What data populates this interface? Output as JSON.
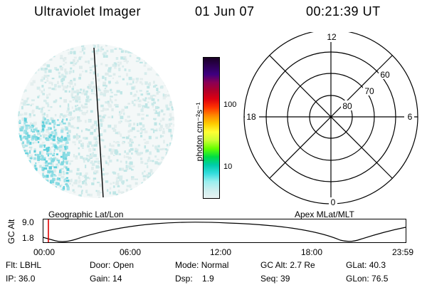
{
  "header": {
    "instrument": "Ultraviolet Imager",
    "date": "01 Jun 07",
    "time": "00:21:39 UT"
  },
  "colorbar": {
    "unit_label": "photon cm⁻²s⁻¹",
    "tick_labels": [
      "100",
      "10"
    ],
    "colors": [
      "#1a0026",
      "#2d0055",
      "#3d0080",
      "#8a0055",
      "#b0002a",
      "#dd0011",
      "#ff3300",
      "#ff8800",
      "#ffcc00",
      "#ffff33",
      "#ccff33",
      "#66ff00",
      "#00dd44",
      "#00ccaa",
      "#33dddd",
      "#99eeee",
      "#cceeee",
      "#e8f2f2"
    ]
  },
  "polar_grid": {
    "mlt_labels": {
      "top": "12",
      "right": "6",
      "bottom": "0",
      "left": "18"
    },
    "lat_labels": [
      "60",
      "70",
      "80"
    ]
  },
  "timeline": {
    "left_title": "Geographic Lat/Lon",
    "right_title": "Apex MLat/MLT",
    "axis_label": "GC Alt",
    "y_ticks": [
      "9.0",
      "1.8"
    ],
    "x_ticks": [
      "00:00",
      "06:00",
      "12:00",
      "18:00",
      "23:59"
    ]
  },
  "info": {
    "row1": [
      {
        "label": "Flt:",
        "value": "LBHL"
      },
      {
        "label": "Door:",
        "value": "Open"
      },
      {
        "label": "Mode:",
        "value": "Normal"
      },
      {
        "label": "GC Alt:",
        "value": "2.7 Re"
      },
      {
        "label": "GLat:",
        "value": "40.3"
      }
    ],
    "row2": [
      {
        "label": "IP:",
        "value": "36.0"
      },
      {
        "label": "Gain:",
        "value": "14"
      },
      {
        "label": "Dsp:",
        "value": "1.9"
      },
      {
        "label": "Seq:",
        "value": "39"
      },
      {
        "label": "GLon:",
        "value": "76.5"
      }
    ]
  }
}
